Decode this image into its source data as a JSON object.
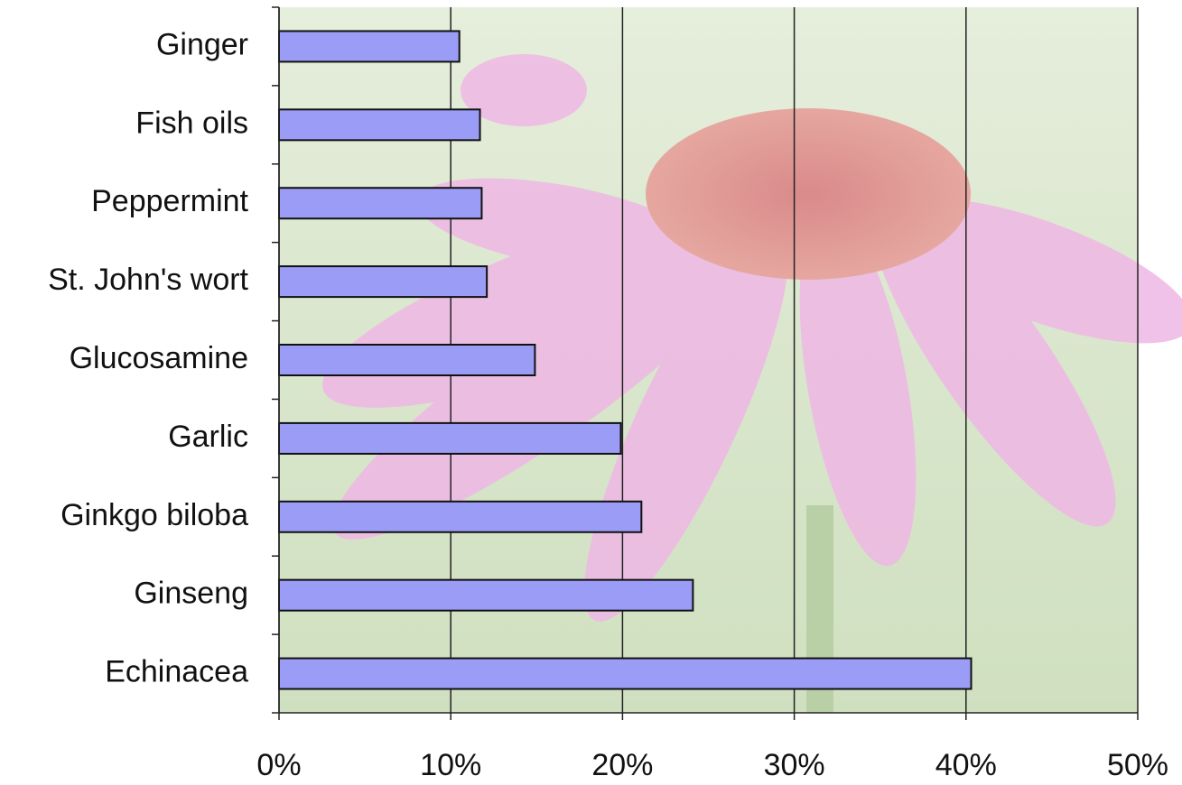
{
  "chart_data": {
    "type": "hbar",
    "categories": [
      "Ginger",
      "Fish oils",
      "Peppermint",
      "St. John's wort",
      "Glucosamine",
      "Garlic",
      "Ginkgo biloba",
      "Ginseng",
      "Echinacea"
    ],
    "values": [
      10.5,
      11.7,
      11.8,
      12.1,
      14.9,
      19.9,
      21.1,
      24.1,
      40.3
    ],
    "color": "#9a9cf6",
    "xlim": [
      0,
      50
    ],
    "xticks": [
      {
        "value": 0,
        "label": "0%"
      },
      {
        "value": 10,
        "label": "10%"
      },
      {
        "value": 20,
        "label": "20%"
      },
      {
        "value": 30,
        "label": "30%"
      },
      {
        "value": 40,
        "label": "40%"
      },
      {
        "value": 50,
        "label": "50%"
      }
    ],
    "grid": true
  }
}
